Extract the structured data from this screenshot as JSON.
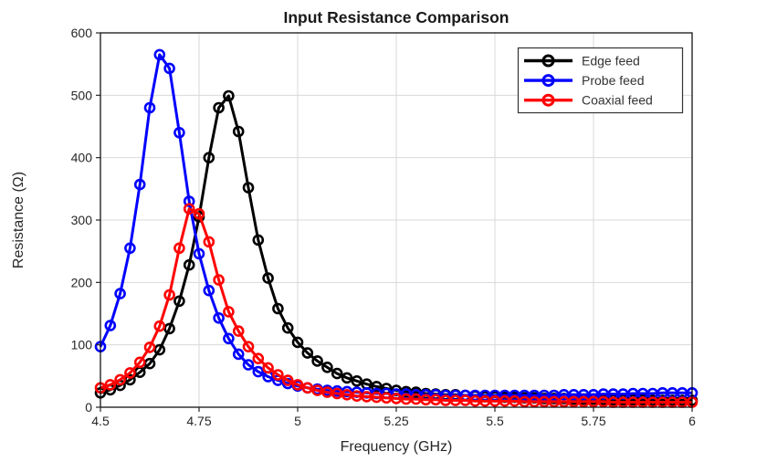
{
  "window": {
    "background_color": "#ffffff"
  },
  "chart_data": {
    "type": "line",
    "title": "Input Resistance Comparison",
    "xlabel": "Frequency (GHz)",
    "ylabel": "Resistance (Ω)",
    "xlim": [
      4.5,
      6.0
    ],
    "ylim": [
      0,
      600
    ],
    "xticks": [
      4.5,
      4.75,
      5.0,
      5.25,
      5.5,
      5.75,
      6.0
    ],
    "xtick_labels": [
      "4.5",
      "4.75",
      "5",
      "5.25",
      "5.5",
      "5.75",
      "6"
    ],
    "yticks": [
      0,
      100,
      200,
      300,
      400,
      500,
      600
    ],
    "ytick_labels": [
      "0",
      "100",
      "200",
      "300",
      "400",
      "500",
      "600"
    ],
    "grid": true,
    "grid_color": "#d9d9d9",
    "axis_color": "#000000",
    "tick_text_color": "#262626",
    "marker": "o",
    "line_width": 3,
    "legend_position": "upper right",
    "x": [
      4.5,
      4.525,
      4.55,
      4.575,
      4.6,
      4.625,
      4.65,
      4.675,
      4.7,
      4.725,
      4.75,
      4.775,
      4.8,
      4.825,
      4.85,
      4.875,
      4.9,
      4.925,
      4.95,
      4.975,
      5.0,
      5.025,
      5.05,
      5.075,
      5.1,
      5.125,
      5.15,
      5.175,
      5.2,
      5.225,
      5.25,
      5.275,
      5.3,
      5.325,
      5.35,
      5.375,
      5.4,
      5.425,
      5.45,
      5.475,
      5.5,
      5.525,
      5.55,
      5.575,
      5.6,
      5.625,
      5.65,
      5.675,
      5.7,
      5.725,
      5.75,
      5.775,
      5.8,
      5.825,
      5.85,
      5.875,
      5.9,
      5.925,
      5.95,
      5.975,
      6.0
    ],
    "series": [
      {
        "name": "Edge feed",
        "color": "#000000",
        "peak": {
          "frequency": 4.825,
          "resistance": 499
        },
        "values": [
          23,
          28,
          35,
          44,
          56,
          70,
          92,
          126,
          170,
          228,
          305,
          400,
          480,
          499,
          442,
          352,
          268,
          207,
          158,
          127,
          104,
          87,
          74,
          64,
          54,
          47,
          42,
          37,
          33,
          30,
          27,
          25,
          24,
          22,
          21,
          20,
          20,
          19,
          18,
          17,
          17,
          16,
          16,
          15,
          15,
          14,
          14,
          14,
          13,
          13,
          13,
          12,
          12,
          12,
          12,
          12,
          11,
          11,
          11,
          11,
          11
        ]
      },
      {
        "name": "Probe feed",
        "color": "#0000ff",
        "peak": {
          "frequency": 4.65,
          "resistance": 565
        },
        "values": [
          97,
          131,
          182,
          255,
          357,
          480,
          565,
          543,
          440,
          330,
          246,
          187,
          143,
          110,
          85,
          68,
          57,
          49,
          43,
          38,
          34,
          31,
          29,
          27,
          26,
          25,
          24,
          23,
          22,
          22,
          21,
          21,
          20,
          20,
          20,
          19,
          19,
          19,
          19,
          19,
          19,
          19,
          19,
          19,
          19,
          19,
          19,
          20,
          20,
          20,
          20,
          21,
          21,
          21,
          22,
          22,
          22,
          23,
          23,
          23,
          23
        ]
      },
      {
        "name": "Coaxial feed",
        "color": "#ff0000",
        "peak": {
          "frequency": 4.725,
          "resistance": 318
        },
        "values": [
          31,
          36,
          44,
          55,
          72,
          96,
          130,
          180,
          255,
          318,
          310,
          265,
          204,
          153,
          122,
          97,
          78,
          63,
          52,
          43,
          36,
          31,
          27,
          24,
          22,
          20,
          18,
          17,
          16,
          15,
          14,
          13,
          13,
          12,
          12,
          11,
          11,
          11,
          10,
          10,
          10,
          10,
          10,
          9,
          9,
          9,
          9,
          9,
          9,
          9,
          9,
          9,
          8,
          8,
          8,
          8,
          8,
          8,
          8,
          8,
          8
        ]
      }
    ],
    "legend": {
      "border_color": "#333333",
      "background": "#ffffff",
      "entries": [
        "Edge feed",
        "Probe feed",
        "Coaxial feed"
      ]
    }
  }
}
